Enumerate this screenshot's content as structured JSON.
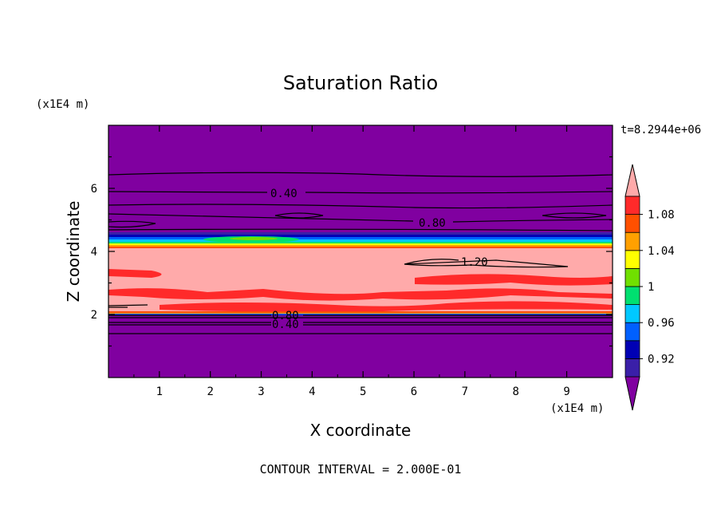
{
  "chart_data": {
    "type": "contour",
    "title": "Saturation Ratio",
    "xlabel": "X coordinate",
    "ylabel": "Z coordinate",
    "x_unit_label": "(x1E4 m)",
    "y_unit_label": "(x1E4 m)",
    "time_label": "t=8.2944e+06",
    "footer": "CONTOUR INTERVAL = 2.000E-01",
    "xlim": [
      0,
      9.9
    ],
    "ylim": [
      0,
      8
    ],
    "x_ticks": [
      "1",
      "2",
      "3",
      "4",
      "5",
      "6",
      "7",
      "8",
      "9"
    ],
    "y_ticks": [
      "2",
      "4",
      "6"
    ],
    "contour_interval": 0.2,
    "contour_labels": [
      "0.40",
      "0.80",
      "1.20",
      "0.80",
      "0.40"
    ],
    "colorbar": {
      "tick_labels": [
        "1.08",
        "1.04",
        "1",
        "0.96",
        "0.92"
      ],
      "levels": [
        0.9,
        0.92,
        0.94,
        0.96,
        0.98,
        1.0,
        1.02,
        1.04,
        1.06,
        1.08,
        1.1
      ],
      "colors": [
        "#8000a0",
        "#3a1fa8",
        "#0000b4",
        "#0060ff",
        "#00c8ff",
        "#00e070",
        "#70e000",
        "#ffff00",
        "#ffa000",
        "#ff5000",
        "#ff2a2a",
        "#ffaaaa"
      ],
      "extend": "both"
    },
    "layers": [
      {
        "z_range": [
          0,
          1.95
        ],
        "value_range": "< 0.90"
      },
      {
        "z_range": [
          2.0,
          4.3
        ],
        "value_range": "> 1.10"
      },
      {
        "z_range": [
          4.3,
          4.5
        ],
        "value_range": "0.90 - 1.10"
      },
      {
        "z_range": [
          4.5,
          8.0
        ],
        "value_range": "< 0.90"
      }
    ]
  }
}
